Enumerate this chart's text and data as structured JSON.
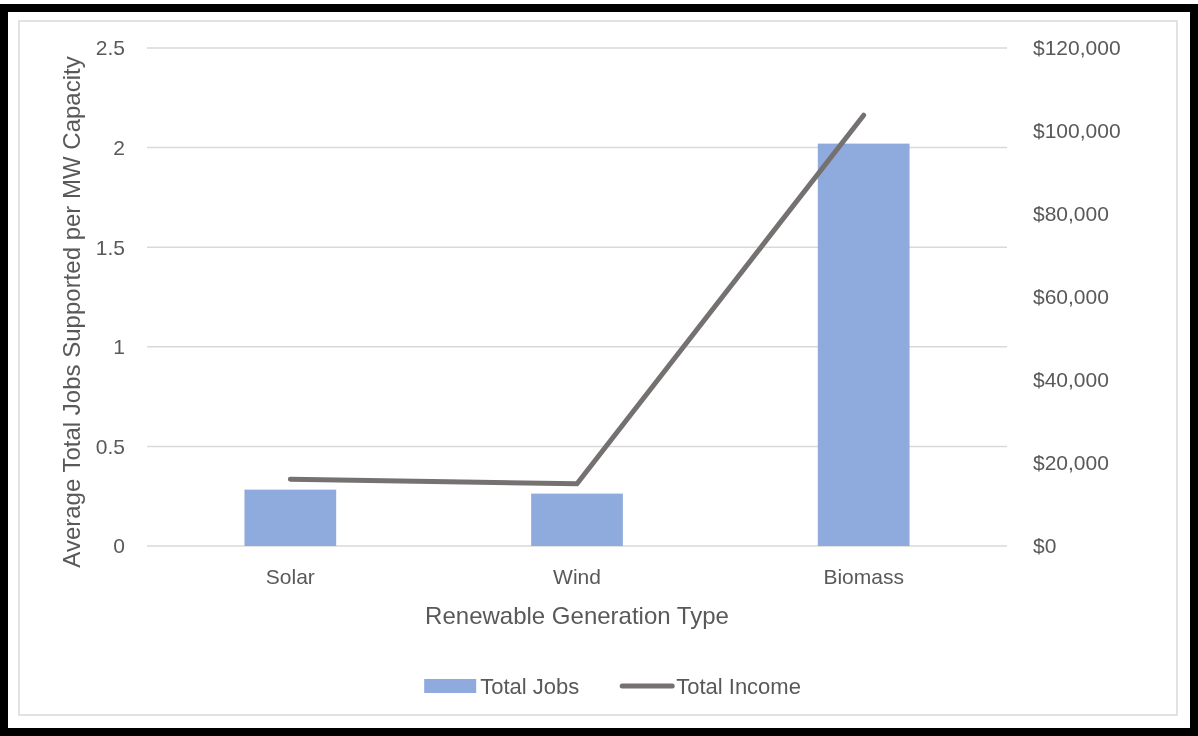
{
  "chart_data": {
    "type": "bar",
    "xlabel": "Renewable Generation Type",
    "ylabel": "Average Total Jobs Supported per MW Capacity",
    "categories": [
      "Solar",
      "Wind",
      "Biomass"
    ],
    "series": [
      {
        "name": "Total Jobs",
        "color": "#8faadc",
        "values": [
          0.283,
          0.263,
          2.02
        ]
      },
      {
        "name": "Total Income",
        "type": "line",
        "axis": "y2",
        "color": "#767171",
        "values": [
          16100,
          15000,
          103800
        ]
      }
    ],
    "ylim": [
      0,
      2.5
    ],
    "yticks": [
      0,
      0.5,
      1,
      1.5,
      2,
      2.5
    ],
    "y2lim": [
      0,
      120000
    ],
    "y2ticks": [
      {
        "value": 0,
        "label": "$0"
      },
      {
        "value": 20000,
        "label": "$20,000"
      },
      {
        "value": 40000,
        "label": "$40,000"
      },
      {
        "value": 60000,
        "label": "$60,000"
      },
      {
        "value": 80000,
        "label": "$80,000"
      },
      {
        "value": 100000,
        "label": "$100,000"
      },
      {
        "value": 120000,
        "label": "$120,000"
      }
    ],
    "grid": "y",
    "legend": "bottom",
    "marker": "none",
    "line_style": "solid"
  }
}
